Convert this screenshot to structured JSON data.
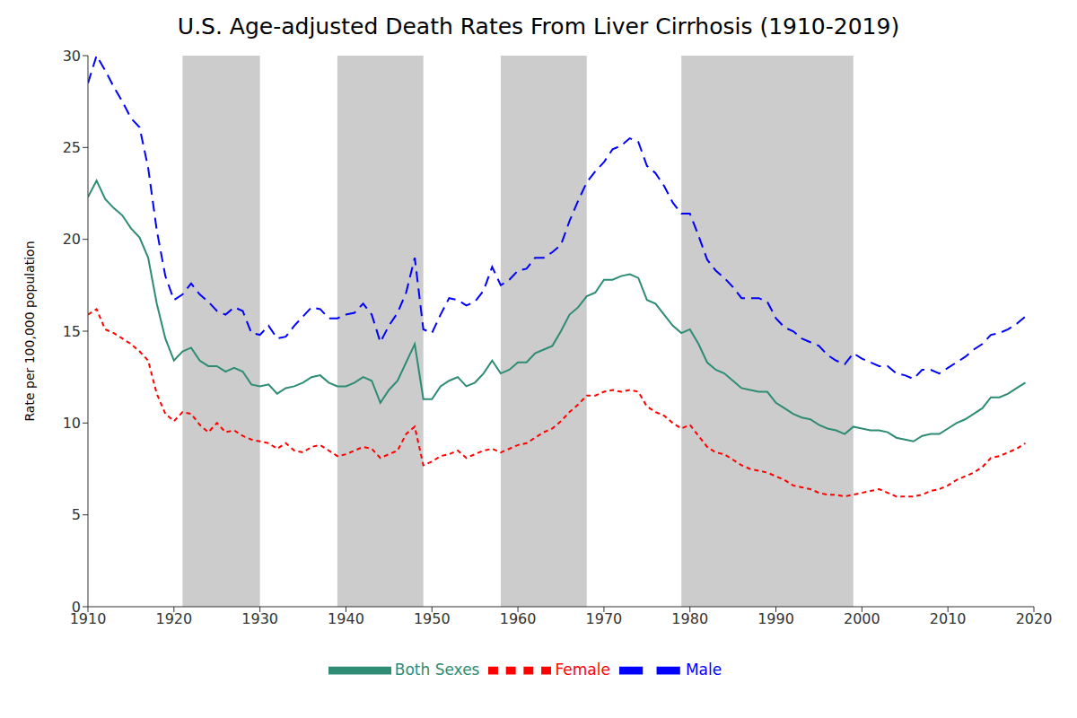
{
  "chart_data": {
    "type": "line",
    "title": "U.S. Age-adjusted Death Rates From Liver Cirrhosis (1910-2019)",
    "y_label": "Rate per 100,000 population",
    "x": [
      1910,
      1911,
      1912,
      1913,
      1914,
      1915,
      1916,
      1917,
      1918,
      1919,
      1920,
      1921,
      1922,
      1923,
      1924,
      1925,
      1926,
      1927,
      1928,
      1929,
      1930,
      1931,
      1932,
      1933,
      1934,
      1935,
      1936,
      1937,
      1938,
      1939,
      1940,
      1941,
      1942,
      1943,
      1944,
      1945,
      1946,
      1947,
      1948,
      1949,
      1950,
      1951,
      1952,
      1953,
      1954,
      1955,
      1956,
      1957,
      1958,
      1959,
      1960,
      1961,
      1962,
      1963,
      1964,
      1965,
      1966,
      1967,
      1968,
      1969,
      1970,
      1971,
      1972,
      1973,
      1974,
      1975,
      1976,
      1977,
      1978,
      1979,
      1980,
      1981,
      1982,
      1983,
      1984,
      1985,
      1986,
      1987,
      1988,
      1989,
      1990,
      1991,
      1992,
      1993,
      1994,
      1995,
      1996,
      1997,
      1998,
      1999,
      2000,
      2001,
      2002,
      2003,
      2004,
      2005,
      2006,
      2007,
      2008,
      2009,
      2010,
      2011,
      2012,
      2013,
      2014,
      2015,
      2016,
      2017,
      2018,
      2019
    ],
    "series": [
      {
        "name": "Both Sexes",
        "color": "#2e8b74",
        "line_style": "solid",
        "values": [
          22.3,
          23.2,
          22.2,
          21.7,
          21.3,
          20.6,
          20.1,
          19.0,
          16.5,
          14.6,
          13.4,
          13.9,
          14.1,
          13.4,
          13.1,
          13.1,
          12.8,
          13.0,
          12.8,
          12.1,
          12.0,
          12.1,
          11.6,
          11.9,
          12.0,
          12.2,
          12.5,
          12.6,
          12.2,
          12.0,
          12.0,
          12.2,
          12.5,
          12.3,
          11.1,
          11.8,
          12.3,
          13.3,
          14.3,
          11.3,
          11.3,
          12.0,
          12.3,
          12.5,
          12.0,
          12.2,
          12.7,
          13.4,
          12.7,
          12.9,
          13.3,
          13.3,
          13.8,
          14.0,
          14.2,
          15.0,
          15.9,
          16.3,
          16.9,
          17.1,
          17.8,
          17.8,
          18.0,
          18.1,
          17.9,
          16.7,
          16.5,
          15.9,
          15.3,
          14.9,
          15.1,
          14.3,
          13.3,
          12.9,
          12.7,
          12.3,
          11.9,
          11.8,
          11.7,
          11.7,
          11.1,
          10.8,
          10.5,
          10.3,
          10.2,
          9.9,
          9.7,
          9.6,
          9.4,
          9.8,
          9.7,
          9.6,
          9.6,
          9.5,
          9.2,
          9.1,
          9.0,
          9.3,
          9.4,
          9.4,
          9.7,
          10.0,
          10.2,
          10.5,
          10.8,
          11.4,
          11.4,
          11.6,
          11.9,
          12.2
        ]
      },
      {
        "name": "Male",
        "color": "#0000ff",
        "line_style": "dashed",
        "values": [
          28.5,
          30.0,
          29.2,
          28.3,
          27.5,
          26.6,
          26.1,
          23.9,
          20.5,
          18.0,
          16.7,
          17.0,
          17.6,
          17.0,
          16.6,
          16.1,
          15.9,
          16.3,
          16.1,
          14.9,
          14.8,
          15.3,
          14.6,
          14.7,
          15.3,
          15.8,
          16.3,
          16.2,
          15.7,
          15.7,
          15.9,
          16.0,
          16.5,
          15.9,
          14.4,
          15.3,
          16.0,
          17.1,
          19.0,
          15.1,
          14.9,
          15.9,
          16.8,
          16.7,
          16.4,
          16.6,
          17.2,
          18.5,
          17.5,
          17.8,
          18.3,
          18.4,
          19.0,
          19.0,
          19.3,
          19.7,
          21.0,
          22.1,
          23.1,
          23.7,
          24.2,
          24.9,
          25.1,
          25.5,
          25.3,
          24.0,
          23.6,
          22.9,
          22.0,
          21.4,
          21.4,
          20.2,
          18.9,
          18.3,
          17.9,
          17.4,
          16.8,
          16.8,
          16.8,
          16.6,
          15.7,
          15.2,
          15.0,
          14.6,
          14.4,
          14.2,
          13.7,
          13.4,
          13.2,
          13.8,
          13.5,
          13.3,
          13.1,
          13.1,
          12.7,
          12.6,
          12.4,
          12.9,
          12.9,
          12.7,
          13.0,
          13.3,
          13.6,
          14.0,
          14.3,
          14.8,
          14.9,
          15.1,
          15.4,
          15.8
        ]
      },
      {
        "name": "Female",
        "color": "#ff0000",
        "line_style": "dotted",
        "values": [
          15.9,
          16.2,
          15.1,
          14.9,
          14.6,
          14.3,
          13.9,
          13.4,
          11.6,
          10.5,
          10.1,
          10.6,
          10.5,
          9.9,
          9.5,
          10.0,
          9.5,
          9.6,
          9.3,
          9.1,
          9.0,
          8.9,
          8.6,
          8.9,
          8.5,
          8.4,
          8.7,
          8.8,
          8.5,
          8.2,
          8.3,
          8.5,
          8.7,
          8.6,
          8.1,
          8.3,
          8.5,
          9.4,
          9.8,
          7.7,
          7.9,
          8.2,
          8.3,
          8.5,
          8.1,
          8.3,
          8.5,
          8.6,
          8.4,
          8.6,
          8.8,
          8.9,
          9.2,
          9.5,
          9.7,
          10.1,
          10.6,
          11.0,
          11.5,
          11.5,
          11.7,
          11.8,
          11.7,
          11.8,
          11.7,
          10.9,
          10.6,
          10.4,
          10.0,
          9.7,
          9.9,
          9.3,
          8.7,
          8.4,
          8.3,
          8.0,
          7.7,
          7.5,
          7.4,
          7.3,
          7.1,
          6.9,
          6.6,
          6.5,
          6.4,
          6.2,
          6.1,
          6.1,
          6.0,
          6.1,
          6.2,
          6.3,
          6.4,
          6.2,
          6.0,
          6.0,
          6.0,
          6.1,
          6.3,
          6.4,
          6.6,
          6.9,
          7.1,
          7.3,
          7.6,
          8.1,
          8.2,
          8.4,
          8.6,
          8.9
        ]
      }
    ],
    "shaded_periods": [
      [
        1921,
        1930
      ],
      [
        1939,
        1949
      ],
      [
        1958,
        1968
      ],
      [
        1979,
        1999
      ]
    ],
    "xlim": [
      1910,
      2020
    ],
    "xticks": [
      1910,
      1920,
      1930,
      1940,
      1950,
      1960,
      1970,
      1980,
      1990,
      2000,
      2010,
      2020
    ],
    "ylim": [
      0,
      30
    ],
    "yticks": [
      0,
      5,
      10,
      15,
      20,
      25,
      30
    ],
    "grid": false,
    "legend": "bottom"
  }
}
